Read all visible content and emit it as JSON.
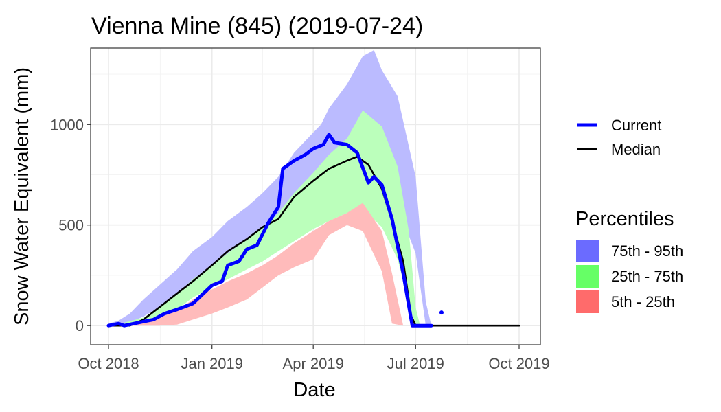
{
  "chart_data": {
    "type": "area",
    "title": "Vienna Mine (845) (2019-07-24)",
    "xlabel": "Date",
    "ylabel": "Snow Water Equivalent (mm)",
    "x_ticks": [
      "Oct 2018",
      "Jan 2019",
      "Apr 2019",
      "Jul 2019",
      "Oct 2019"
    ],
    "y_ticks": [
      "0",
      "500",
      "1000"
    ],
    "xlim": [
      "2018-10-01",
      "2019-10-01"
    ],
    "ylim": [
      -95,
      1380
    ],
    "grid": true,
    "legend_position": "right",
    "line_legend": [
      {
        "name": "Current",
        "color": "#0000ff"
      },
      {
        "name": "Median",
        "color": "#000000"
      }
    ],
    "percentile_legend_title": "Percentiles",
    "percentile_legend": [
      {
        "name": "75th - 95th",
        "color": "#6b6bff"
      },
      {
        "name": "25th - 75th",
        "color": "#66ff66"
      },
      {
        "name": "5th - 25th",
        "color": "#ff6b6b"
      }
    ],
    "bands": [
      {
        "name": "75th - 95th",
        "fill": "#bbbbff",
        "x": [
          "2018-10-01",
          "2018-10-10",
          "2018-10-20",
          "2018-11-01",
          "2018-11-15",
          "2018-12-01",
          "2018-12-15",
          "2019-01-01",
          "2019-01-15",
          "2019-02-01",
          "2019-02-15",
          "2019-03-01",
          "2019-03-15",
          "2019-04-01",
          "2019-04-08",
          "2019-04-15",
          "2019-05-01",
          "2019-05-15",
          "2019-05-25",
          "2019-06-01",
          "2019-06-15",
          "2019-07-01",
          "2019-07-10",
          "2019-07-15"
        ],
        "upper": [
          10,
          25,
          60,
          130,
          200,
          280,
          370,
          440,
          520,
          590,
          660,
          740,
          860,
          960,
          1000,
          1080,
          1200,
          1340,
          1370,
          1270,
          1140,
          740,
          120,
          0
        ],
        "lower": [
          0,
          0,
          15,
          45,
          90,
          150,
          220,
          290,
          360,
          420,
          470,
          540,
          650,
          750,
          790,
          830,
          880,
          850,
          820,
          730,
          590,
          360,
          0,
          0
        ]
      },
      {
        "name": "25th - 75th",
        "fill": "#bbffbb",
        "x": [
          "2018-10-01",
          "2018-10-15",
          "2018-11-01",
          "2018-11-15",
          "2018-12-01",
          "2018-12-15",
          "2019-01-01",
          "2019-01-15",
          "2019-02-01",
          "2019-02-15",
          "2019-03-01",
          "2019-03-15",
          "2019-04-01",
          "2019-04-15",
          "2019-05-01",
          "2019-05-15",
          "2019-06-01",
          "2019-06-15",
          "2019-06-25",
          "2019-07-01",
          "2019-07-05"
        ],
        "upper": [
          0,
          15,
          40,
          90,
          160,
          230,
          300,
          360,
          430,
          490,
          560,
          660,
          760,
          850,
          930,
          1070,
          990,
          790,
          470,
          90,
          0
        ],
        "lower": [
          0,
          0,
          15,
          40,
          80,
          140,
          190,
          230,
          280,
          320,
          370,
          420,
          480,
          520,
          560,
          580,
          490,
          330,
          110,
          0,
          0
        ]
      },
      {
        "name": "5th - 25th",
        "fill": "#ffbbbb",
        "x": [
          "2018-10-01",
          "2018-11-01",
          "2018-11-15",
          "2018-12-01",
          "2018-12-15",
          "2019-01-01",
          "2019-01-15",
          "2019-02-01",
          "2019-02-15",
          "2019-03-01",
          "2019-03-15",
          "2019-04-01",
          "2019-04-15",
          "2019-05-01",
          "2019-05-15",
          "2019-06-01",
          "2019-06-10",
          "2019-06-20"
        ],
        "upper": [
          0,
          15,
          40,
          75,
          130,
          180,
          220,
          260,
          300,
          350,
          410,
          470,
          520,
          560,
          610,
          470,
          260,
          0
        ],
        "lower": [
          0,
          0,
          0,
          5,
          30,
          60,
          90,
          130,
          190,
          250,
          290,
          330,
          450,
          500,
          470,
          270,
          10,
          0
        ]
      }
    ],
    "series": [
      {
        "name": "Median",
        "color": "#000000",
        "x": [
          "2018-10-01",
          "2018-10-20",
          "2018-11-01",
          "2018-11-15",
          "2018-12-01",
          "2018-12-15",
          "2019-01-01",
          "2019-01-15",
          "2019-02-01",
          "2019-02-15",
          "2019-03-01",
          "2019-03-15",
          "2019-04-01",
          "2019-04-15",
          "2019-05-01",
          "2019-05-10",
          "2019-05-20",
          "2019-06-01",
          "2019-06-10",
          "2019-06-20",
          "2019-06-27",
          "2019-07-01",
          "2019-07-15",
          "2019-08-01",
          "2019-09-01",
          "2019-10-01"
        ],
        "values": [
          0,
          0,
          30,
          90,
          160,
          220,
          300,
          370,
          430,
          490,
          530,
          640,
          720,
          780,
          820,
          840,
          800,
          680,
          520,
          320,
          50,
          0,
          0,
          0,
          0,
          0
        ]
      },
      {
        "name": "Current",
        "color": "#0000ff",
        "x": [
          "2018-10-01",
          "2018-10-10",
          "2018-10-15",
          "2018-11-01",
          "2018-11-10",
          "2018-11-20",
          "2018-12-01",
          "2018-12-15",
          "2019-01-01",
          "2019-01-10",
          "2019-01-15",
          "2019-01-25",
          "2019-02-01",
          "2019-02-10",
          "2019-02-20",
          "2019-03-01",
          "2019-03-05",
          "2019-03-15",
          "2019-03-25",
          "2019-04-01",
          "2019-04-10",
          "2019-04-15",
          "2019-04-20",
          "2019-05-01",
          "2019-05-10",
          "2019-05-20",
          "2019-05-25",
          "2019-06-01",
          "2019-06-10",
          "2019-06-20",
          "2019-06-28",
          "2019-07-01",
          "2019-07-10",
          "2019-07-15"
        ],
        "values": [
          0,
          10,
          0,
          20,
          30,
          60,
          80,
          110,
          200,
          220,
          300,
          320,
          380,
          400,
          510,
          590,
          780,
          820,
          850,
          880,
          900,
          950,
          910,
          900,
          860,
          710,
          740,
          700,
          530,
          260,
          0,
          0,
          0,
          0
        ]
      }
    ],
    "points": [
      {
        "name": "Current",
        "x": "2019-07-24",
        "y": 65,
        "color": "#0000ff"
      }
    ]
  }
}
